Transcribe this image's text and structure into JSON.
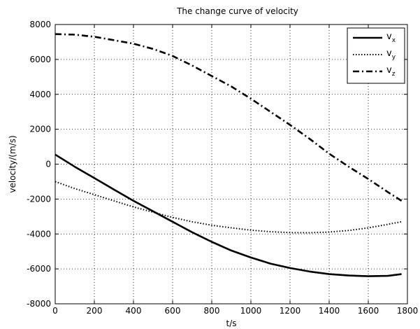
{
  "chart_data": {
    "type": "line",
    "title": "The change curve of velocity",
    "xlabel": "t/s",
    "ylabel": "velocity/(m/s)",
    "xlim": [
      0,
      1800
    ],
    "ylim": [
      -8000,
      8000
    ],
    "xticks": [
      0,
      200,
      400,
      600,
      800,
      1000,
      1200,
      1400,
      1600,
      1800
    ],
    "yticks": [
      -8000,
      -6000,
      -4000,
      -2000,
      0,
      2000,
      4000,
      6000,
      8000
    ],
    "grid": true,
    "legend_position": "top-right",
    "series": [
      {
        "name": "v",
        "subscript": "x",
        "style": "solid",
        "color": "#000000",
        "x": [
          0,
          100,
          200,
          300,
          400,
          500,
          600,
          700,
          800,
          900,
          1000,
          1100,
          1200,
          1300,
          1400,
          1500,
          1600,
          1700,
          1770
        ],
        "y": [
          550,
          -150,
          -800,
          -1450,
          -2100,
          -2700,
          -3300,
          -3900,
          -4450,
          -4950,
          -5350,
          -5700,
          -5950,
          -6150,
          -6300,
          -6380,
          -6420,
          -6400,
          -6300
        ]
      },
      {
        "name": "v",
        "subscript": "y",
        "style": "dotted",
        "color": "#000000",
        "x": [
          0,
          100,
          200,
          300,
          400,
          500,
          600,
          700,
          800,
          900,
          1000,
          1100,
          1200,
          1300,
          1400,
          1500,
          1600,
          1700,
          1770
        ],
        "y": [
          -1000,
          -1400,
          -1750,
          -2100,
          -2450,
          -2750,
          -3050,
          -3300,
          -3500,
          -3650,
          -3780,
          -3870,
          -3920,
          -3930,
          -3890,
          -3800,
          -3650,
          -3450,
          -3300
        ]
      },
      {
        "name": "v",
        "subscript": "z",
        "style": "dashdot",
        "color": "#000000",
        "x": [
          0,
          100,
          200,
          300,
          400,
          500,
          600,
          700,
          800,
          900,
          1000,
          1100,
          1200,
          1300,
          1400,
          1500,
          1600,
          1700,
          1770
        ],
        "y": [
          7450,
          7420,
          7300,
          7100,
          6900,
          6600,
          6200,
          5650,
          5050,
          4450,
          3750,
          3000,
          2250,
          1450,
          600,
          -150,
          -850,
          -1600,
          -2100
        ]
      }
    ]
  }
}
